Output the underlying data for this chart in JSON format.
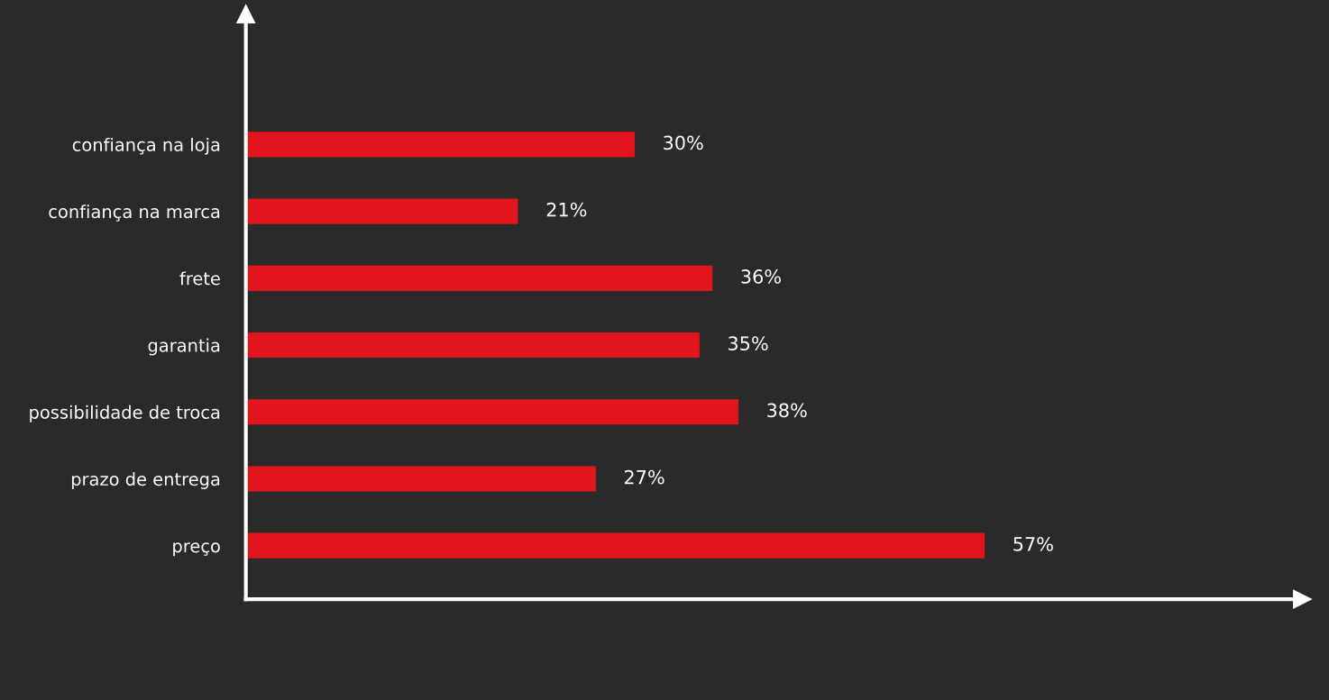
{
  "chart_data": {
    "type": "bar",
    "orientation": "horizontal",
    "categories": [
      "confiança na loja",
      "confiança na marca",
      "frete",
      "garantia",
      "possibilidade de troca",
      "prazo de entrega",
      "preço"
    ],
    "values": [
      30,
      21,
      36,
      35,
      38,
      27,
      57
    ],
    "value_labels": [
      "30%",
      "21%",
      "36%",
      "35%",
      "38%",
      "27%",
      "57%"
    ],
    "color": "#e3141c",
    "grid": false,
    "legend": false
  }
}
